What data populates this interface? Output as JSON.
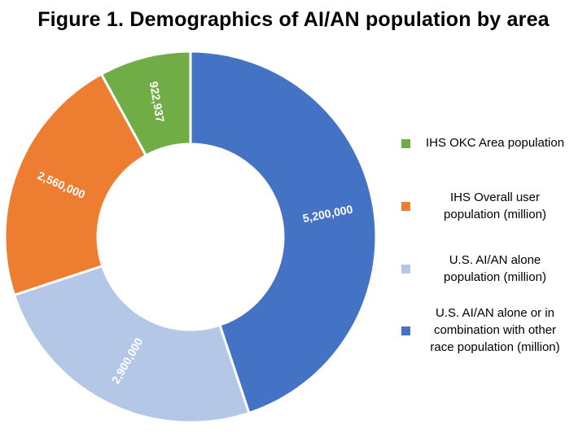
{
  "chart_data": {
    "type": "pie",
    "title": "Figure 1. Demographics of AI/AN population by area",
    "hole": "donut",
    "legend_position": "right",
    "categories": [
      "U.S. AI/AN alone or in combination with other race population (million)",
      "U.S. AI/AN alone population (million)",
      "IHS Overall user population (million)",
      "IHS OKC Area population"
    ],
    "values": [
      5200000,
      2900000,
      2560000,
      922937
    ],
    "labels": [
      "5,200,000",
      "2,900,000",
      "2,560,000",
      "922,937"
    ],
    "colors": [
      "#4472c4",
      "#b4c7e7",
      "#ed7d31",
      "#70ad47"
    ]
  },
  "legend": {
    "items": [
      {
        "text": "IHS OKC Area population",
        "color": "#70ad47"
      },
      {
        "text": "IHS Overall user\npopulation (million)",
        "color": "#ed7d31"
      },
      {
        "text": "U.S. AI/AN alone\npopulation (million)",
        "color": "#b4c7e7"
      },
      {
        "text": "U.S. AI/AN alone or in\ncombination with other\nrace population (million)",
        "color": "#4472c4"
      }
    ]
  }
}
